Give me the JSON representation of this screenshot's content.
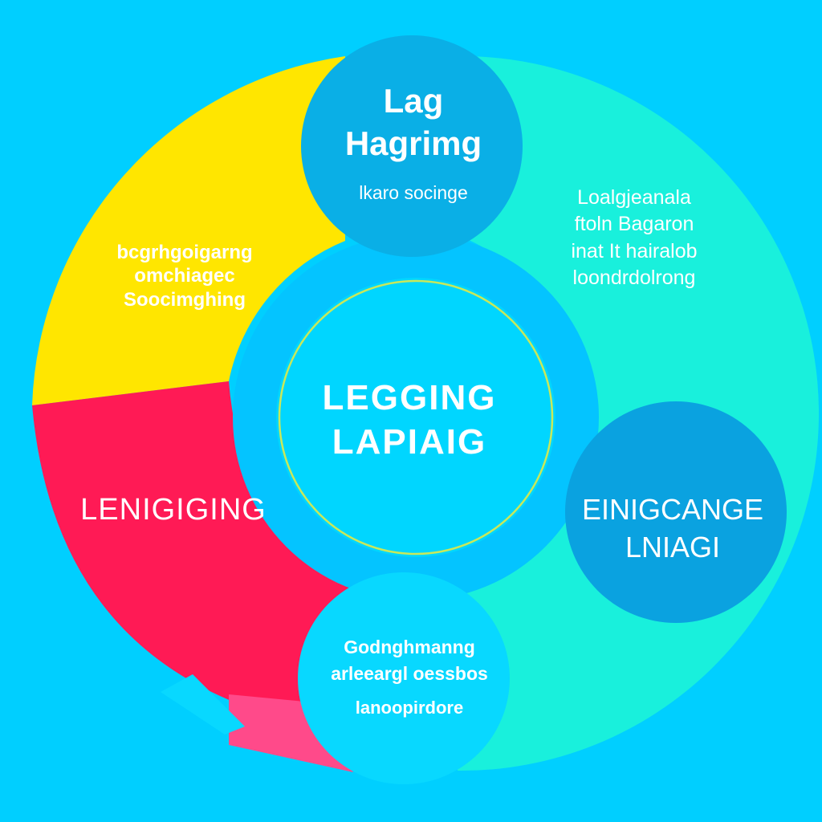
{
  "colors": {
    "background": "#00cfff",
    "yellow": "#ffe600",
    "red": "#ff1a55",
    "pink": "#ff4a8a",
    "teal": "#19f0dc",
    "top_node": "#0aafe6",
    "right_node": "#0aa2e0",
    "bottom_node": "#08d8ff",
    "center_ring": "#04c4ff",
    "center_core": "#00d6ff",
    "center_outline": "#c9e85a"
  },
  "diagram": {
    "top_node": {
      "title": [
        "Lag",
        "Hagrimg"
      ],
      "subtitle": "lkaro socinge"
    },
    "yellow_segment": {
      "lines": [
        "bcgrhgoigarng",
        "omchiagec",
        "Soocimghing"
      ]
    },
    "teal_segment": {
      "lines": [
        "Loalgjeanala",
        "ftoln Bagaron",
        "inat It hairalob",
        "loondrdolrong"
      ]
    },
    "center": {
      "lines": [
        "LEGGING",
        "LAPIAIG"
      ]
    },
    "red_segment": {
      "label": "LENIGIGING"
    },
    "right_node": {
      "lines": [
        "EINIGCANGE",
        "LNIAGI"
      ]
    },
    "bottom_node": {
      "lines": [
        "Godnghmanng",
        "arleeargl oessbos"
      ],
      "extra": "lanoopirdore"
    }
  }
}
